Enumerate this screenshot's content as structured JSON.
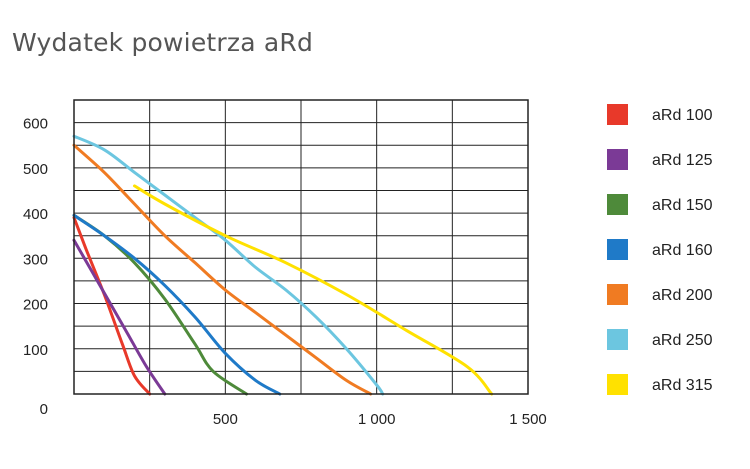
{
  "chart_data": {
    "type": "line",
    "title": "Wydatek powietrza aRd",
    "xlabel": "",
    "ylabel": "",
    "xlim": [
      0,
      1500
    ],
    "ylim": [
      0,
      650
    ],
    "grid": true,
    "legend_position": "right",
    "x_ticks": [
      {
        "value": 500,
        "label": "500"
      },
      {
        "value": 1000,
        "label": "1 000"
      },
      {
        "value": 1500,
        "label": "1 500"
      }
    ],
    "y_ticks": [
      {
        "value": 0,
        "label": "0"
      },
      {
        "value": 100,
        "label": "100"
      },
      {
        "value": 200,
        "label": "200"
      },
      {
        "value": 300,
        "label": "300"
      },
      {
        "value": 400,
        "label": "400"
      },
      {
        "value": 500,
        "label": "500"
      },
      {
        "value": 600,
        "label": "600"
      }
    ],
    "series": [
      {
        "name": "aRd 100",
        "color": "#e8392a",
        "points": [
          [
            0,
            390
          ],
          [
            40,
            320
          ],
          [
            100,
            220
          ],
          [
            160,
            110
          ],
          [
            200,
            40
          ],
          [
            250,
            0
          ]
        ]
      },
      {
        "name": "aRd 125",
        "color": "#7b3a96",
        "points": [
          [
            0,
            340
          ],
          [
            60,
            270
          ],
          [
            120,
            200
          ],
          [
            180,
            130
          ],
          [
            240,
            60
          ],
          [
            300,
            0
          ]
        ]
      },
      {
        "name": "aRd 150",
        "color": "#4e8a3a",
        "points": [
          [
            0,
            395
          ],
          [
            100,
            350
          ],
          [
            200,
            290
          ],
          [
            300,
            210
          ],
          [
            400,
            110
          ],
          [
            460,
            50
          ],
          [
            570,
            0
          ]
        ]
      },
      {
        "name": "aRd 160",
        "color": "#1f7ac8",
        "points": [
          [
            0,
            395
          ],
          [
            100,
            350
          ],
          [
            200,
            300
          ],
          [
            300,
            240
          ],
          [
            400,
            170
          ],
          [
            500,
            90
          ],
          [
            600,
            30
          ],
          [
            680,
            0
          ]
        ]
      },
      {
        "name": "aRd 200",
        "color": "#f07b22",
        "points": [
          [
            0,
            550
          ],
          [
            100,
            490
          ],
          [
            200,
            420
          ],
          [
            300,
            350
          ],
          [
            400,
            290
          ],
          [
            500,
            230
          ],
          [
            600,
            180
          ],
          [
            700,
            130
          ],
          [
            800,
            80
          ],
          [
            900,
            30
          ],
          [
            980,
            0
          ]
        ]
      },
      {
        "name": "aRd 250",
        "color": "#6cc6e0",
        "points": [
          [
            0,
            570
          ],
          [
            100,
            540
          ],
          [
            200,
            490
          ],
          [
            300,
            440
          ],
          [
            400,
            390
          ],
          [
            500,
            340
          ],
          [
            600,
            280
          ],
          [
            700,
            230
          ],
          [
            800,
            170
          ],
          [
            900,
            100
          ],
          [
            1000,
            20
          ],
          [
            1020,
            0
          ]
        ]
      },
      {
        "name": "aRd 315",
        "color": "#ffe100",
        "points": [
          [
            200,
            460
          ],
          [
            300,
            420
          ],
          [
            500,
            350
          ],
          [
            700,
            290
          ],
          [
            900,
            220
          ],
          [
            1100,
            140
          ],
          [
            1300,
            60
          ],
          [
            1380,
            0
          ]
        ]
      }
    ]
  }
}
